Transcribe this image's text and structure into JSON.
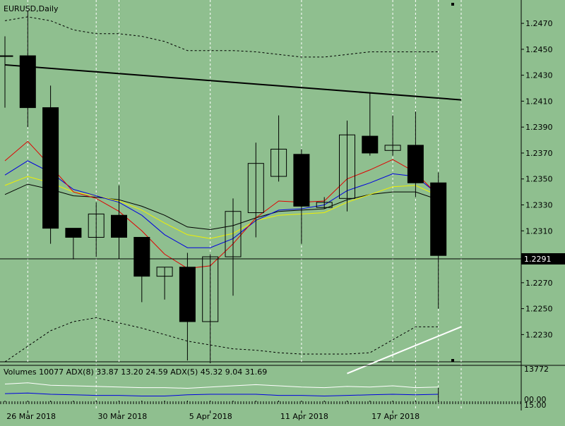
{
  "window": {
    "symbol_label": "EURUSD,Daily",
    "current_price_label": "1.2291"
  },
  "indicator": {
    "caption": "Volumes 10077 ADX(8) 33.87 13.20 24.59 ADX(5) 45.32 9.04 31.69",
    "scale_top": "13772",
    "scale_bottom_a": "00.00",
    "scale_bottom_b": "15.00"
  },
  "colors": {
    "background": "#8FBF8F",
    "candle": "#000000",
    "ma_red": "#E00000",
    "ma_blue": "#0000E0",
    "ma_yellow": "#F0F000",
    "ma_black": "#000000",
    "envelope": "#000000",
    "trendline": "#000000",
    "trendline_white": "#FFFFFF",
    "adx_white": "#FFFFFF",
    "adx_blue": "#0000E0"
  },
  "chart_data": {
    "type": "candlestick",
    "title": "EURUSD,Daily",
    "ylim": [
      1.2209,
      1.2488
    ],
    "y_ticks": [
      "1.2470",
      "1.2450",
      "1.2430",
      "1.2410",
      "1.2390",
      "1.2370",
      "1.2350",
      "1.2330",
      "1.2310",
      "1.2270",
      "1.2250",
      "1.2230"
    ],
    "x_ticks": [
      {
        "label": "26 Mar 2018",
        "index": 1
      },
      {
        "label": "30 Mar 2018",
        "index": 5
      },
      {
        "label": "5 Apr 2018",
        "index": 9
      },
      {
        "label": "11 Apr 2018",
        "index": 13
      },
      {
        "label": "17 Apr 2018",
        "index": 17
      }
    ],
    "dotted_vertical_indices": [
      4,
      18,
      19,
      20
    ],
    "current_price": 1.2291,
    "candles": [
      {
        "o": 1.2445,
        "h": 1.246,
        "l": 1.2405,
        "c": 1.2445
      },
      {
        "o": 1.2445,
        "h": 1.248,
        "l": 1.239,
        "c": 1.2405
      },
      {
        "o": 1.2405,
        "h": 1.2422,
        "l": 1.23,
        "c": 1.2312
      },
      {
        "o": 1.2312,
        "h": 1.2312,
        "l": 1.2288,
        "c": 1.2305
      },
      {
        "o": 1.2305,
        "h": 1.2332,
        "l": 1.229,
        "c": 1.2323
      },
      {
        "o": 1.2322,
        "h": 1.2345,
        "l": 1.2288,
        "c": 1.2305
      },
      {
        "o": 1.2305,
        "h": 1.2305,
        "l": 1.2255,
        "c": 1.2275
      },
      {
        "o": 1.2275,
        "h": 1.2282,
        "l": 1.2257,
        "c": 1.2282
      },
      {
        "o": 1.2282,
        "h": 1.2293,
        "l": 1.221,
        "c": 1.224
      },
      {
        "o": 1.224,
        "h": 1.2292,
        "l": 1.2208,
        "c": 1.229
      },
      {
        "o": 1.229,
        "h": 1.2335,
        "l": 1.226,
        "c": 1.2325
      },
      {
        "o": 1.2324,
        "h": 1.2378,
        "l": 1.2305,
        "c": 1.2362
      },
      {
        "o": 1.2352,
        "h": 1.2399,
        "l": 1.2348,
        "c": 1.2373
      },
      {
        "o": 1.2369,
        "h": 1.2373,
        "l": 1.23,
        "c": 1.2329
      },
      {
        "o": 1.2328,
        "h": 1.2336,
        "l": 1.2327,
        "c": 1.2332
      },
      {
        "o": 1.2335,
        "h": 1.2395,
        "l": 1.2325,
        "c": 1.2384
      },
      {
        "o": 1.2383,
        "h": 1.2416,
        "l": 1.2368,
        "c": 1.237
      },
      {
        "o": 1.2372,
        "h": 1.2399,
        "l": 1.2368,
        "c": 1.2376
      },
      {
        "o": 1.2376,
        "h": 1.2402,
        "l": 1.2336,
        "c": 1.2347
      },
      {
        "o": 1.2347,
        "h": 1.2355,
        "l": 1.225,
        "c": 1.2291
      }
    ],
    "ma_red": [
      1.2364,
      1.2379,
      1.236,
      1.234,
      1.2335,
      1.2325,
      1.231,
      1.2292,
      1.2281,
      1.2283,
      1.23,
      1.232,
      1.2333,
      1.2332,
      1.2333,
      1.235,
      1.2357,
      1.2365,
      1.2355,
      1.2337
    ],
    "ma_blue": [
      1.2353,
      1.2364,
      1.2355,
      1.2342,
      1.2337,
      1.2332,
      1.2322,
      1.2307,
      1.2297,
      1.2297,
      1.2304,
      1.2318,
      1.2326,
      1.2327,
      1.233,
      1.2341,
      1.2347,
      1.2354,
      1.2352,
      1.2338
    ],
    "ma_yellow": [
      1.2345,
      1.2352,
      1.2347,
      1.234,
      1.2337,
      1.2333,
      1.2326,
      1.2316,
      1.2307,
      1.2304,
      1.2308,
      1.2318,
      1.2322,
      1.2323,
      1.2324,
      1.2332,
      1.2338,
      1.2344,
      1.2345,
      1.2337
    ],
    "ma_black": [
      1.2338,
      1.2346,
      1.2342,
      1.2337,
      1.2336,
      1.2334,
      1.2329,
      1.2322,
      1.2313,
      1.2311,
      1.2314,
      1.232,
      1.2325,
      1.2326,
      1.2327,
      1.2334,
      1.2338,
      1.234,
      1.234,
      1.2334
    ],
    "envelope_upper": [
      1.2472,
      1.2475,
      1.2472,
      1.2465,
      1.2462,
      1.2462,
      1.246,
      1.2456,
      1.2449,
      1.2449,
      1.2449,
      1.2448,
      1.2446,
      1.2444,
      1.2444,
      1.2446,
      1.2448,
      1.2448,
      1.2448,
      1.2448
    ],
    "envelope_lower": [
      1.2209,
      1.2221,
      1.2233,
      1.224,
      1.2243,
      1.2239,
      1.2235,
      1.223,
      1.2225,
      1.2222,
      1.2219,
      1.2218,
      1.2216,
      1.2215,
      1.2215,
      1.2215,
      1.2216,
      1.2226,
      1.2236,
      1.2236
    ],
    "trendline": {
      "start": {
        "index": 0,
        "value": 1.2438
      },
      "end": {
        "index": 20,
        "value": 1.2411
      }
    },
    "trendline_white": {
      "start": {
        "index": 15,
        "value": 1.22
      },
      "end": {
        "index": 20,
        "value": 1.2236
      }
    },
    "adx_white": [
      30,
      32,
      28,
      27,
      26,
      25,
      24,
      24,
      23,
      25,
      27,
      29,
      27,
      25,
      24,
      26,
      25,
      27,
      24,
      25
    ],
    "adx_blue": [
      14,
      15,
      13,
      12,
      11,
      11,
      10,
      10,
      12,
      13,
      13,
      13,
      11,
      11,
      10,
      11,
      12,
      13,
      12,
      13
    ],
    "volume_bars": [
      2,
      2,
      2,
      2,
      2,
      2,
      2,
      2,
      2,
      2,
      2,
      2,
      2,
      2,
      2,
      2,
      2,
      2,
      2,
      20
    ]
  }
}
